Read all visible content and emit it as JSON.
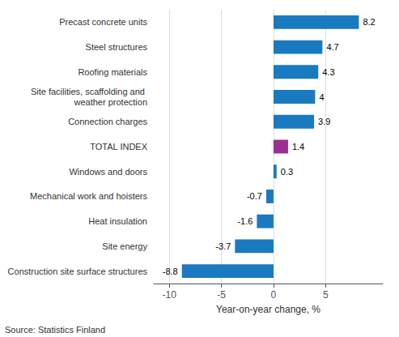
{
  "chart_data": {
    "type": "bar",
    "orientation": "horizontal",
    "categories": [
      "Construction site surface structures",
      "Site energy",
      "Heat insulation",
      "Mechanical work and hoisters",
      "Windows and doors",
      "TOTAL INDEX",
      "Connection charges",
      "Site facilities, scaffolding and weather protection",
      "Roofing materials",
      "Steel structures",
      "Precast concrete units"
    ],
    "values": [
      -8.8,
      -3.7,
      -1.6,
      -0.7,
      0.3,
      1.4,
      3.9,
      4.0,
      4.3,
      4.7,
      8.2
    ],
    "colors": [
      "#1a7abf",
      "#1a7abf",
      "#1a7abf",
      "#1a7abf",
      "#1a7abf",
      "#9b3090",
      "#1a7abf",
      "#1a7abf",
      "#1a7abf",
      "#1a7abf",
      "#1a7abf"
    ],
    "xlabel": "Year-on-year change, %",
    "xlim": [
      -11.5,
      10.5
    ],
    "xticks": [
      -10,
      -5,
      0,
      5
    ],
    "grid": true,
    "data_labels": true,
    "annotation": "Source: Statistics Finland"
  }
}
